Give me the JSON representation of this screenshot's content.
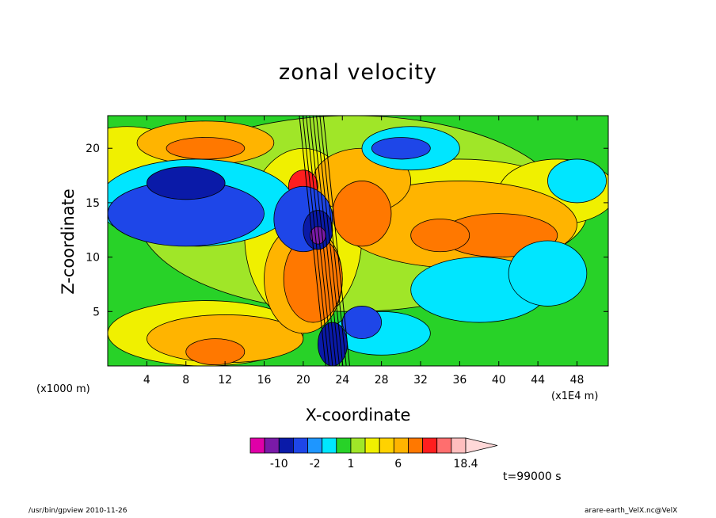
{
  "chart_data": {
    "type": "heatmap",
    "title": "zonal velocity",
    "xlabel": "X-coordinate",
    "ylabel": "Z-coordinate",
    "x_unit_left": "(x1000 m)",
    "x_unit_right": "(x1E4 m)",
    "x_ticks": [
      "4",
      "8",
      "12",
      "16",
      "20",
      "24",
      "28",
      "32",
      "36",
      "40",
      "44",
      "48"
    ],
    "y_ticks": [
      "5",
      "10",
      "15",
      "20"
    ],
    "xlim": [
      0,
      51.2
    ],
    "ylim": [
      0,
      23
    ],
    "colorbar": {
      "colors": [
        "#e000a8",
        "#7a1aa8",
        "#0a1aa8",
        "#1e46e8",
        "#1e96ff",
        "#00e6ff",
        "#28d228",
        "#a0e628",
        "#f0f000",
        "#ffd200",
        "#ffb400",
        "#ff7800",
        "#ff1e1e",
        "#ff6e6e",
        "#ffbebe"
      ],
      "tick_labels": [
        "-10",
        "-2",
        "1",
        "6",
        "18.4"
      ],
      "tick_values": [
        -10,
        -2,
        1,
        6,
        18.4
      ]
    },
    "colormap_values": {
      "background": "#28d228",
      "levels": {
        "light_green": "#a0e628",
        "yellow": "#f0f000",
        "gold": "#ffb400",
        "orange": "#ff7800",
        "red": "#ff1e1e",
        "cyan": "#00e6ff",
        "blue": "#1e46e8",
        "dark_blue": "#0a1aa8",
        "purple": "#7a1aa8"
      }
    },
    "time_label": "t=99000 s"
  },
  "footer": {
    "left": "/usr/bin/gpview   2010-11-26",
    "right": "arare-earth_VelX.nc@VelX"
  }
}
